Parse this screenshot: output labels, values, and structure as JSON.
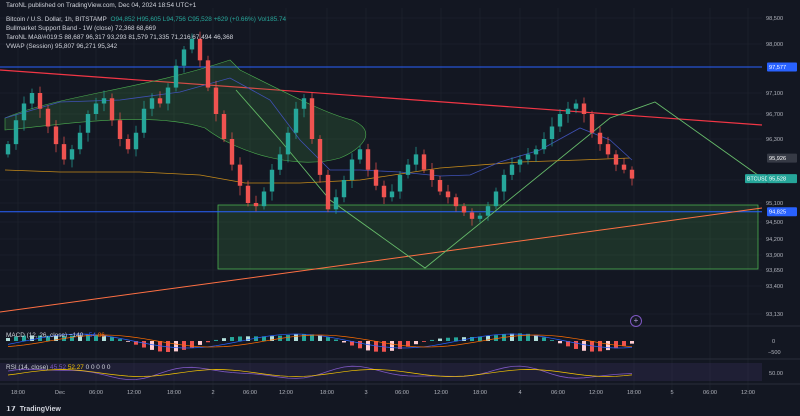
{
  "header": {
    "published": "TaroNL published on TradingView.com, Dec 04, 2024 18:54 UTC+1",
    "symbol": "Bitcoin / U.S. Dollar, 1h, BITSTAMP",
    "ohlc": "O94,852  H95,605  L94,756  C95,528  +629 (+0.66%)  Vol185.74",
    "band": "Bullmarket Support Band - 1W (close)  72,368  68,669",
    "ma": "TaroNL MA8/#019:5  88,687  96,317  93,293  81,579  71,335  71,216  67,494  46,368",
    "vwap": "VWAP (Session)  95,807  96,271  95,342"
  },
  "price_axis": {
    "ticks": [
      {
        "label": "98,500",
        "v": 98500
      },
      {
        "label": "98,000",
        "v": 98000
      },
      {
        "label": "97,100",
        "v": 97100
      },
      {
        "label": "96,700",
        "v": 96700
      },
      {
        "label": "96,300",
        "v": 96300
      },
      {
        "label": "95,500",
        "v": 95500
      },
      {
        "label": "95,100",
        "v": 95100
      },
      {
        "label": "94,500",
        "v": 94500
      },
      {
        "label": "94,200",
        "v": 94200
      },
      {
        "label": "93,900",
        "v": 93900
      },
      {
        "label": "93,650",
        "v": 93650
      },
      {
        "label": "93,400",
        "v": 93400
      },
      {
        "label": "93,130",
        "v": 93130
      }
    ],
    "tags": [
      {
        "label": "97,577",
        "v": 97577,
        "color": "#2962ff"
      },
      {
        "label": "95,926",
        "v": 95926,
        "color": "#363a45"
      },
      {
        "label": "BTCUSD",
        "v": 95528,
        "color": "#26a69a"
      },
      {
        "label": "95,528",
        "v": 95528,
        "color": "#26a69a"
      },
      {
        "label": "94,825",
        "v": 94825,
        "color": "#2962ff"
      }
    ]
  },
  "time_axis": [
    "18:00",
    "Dec",
    "06:00",
    "12:00",
    "18:00",
    "2",
    "06:00",
    "12:00",
    "18:00",
    "3",
    "06:00",
    "12:00",
    "18:00",
    "4",
    "06:00",
    "12:00",
    "18:00",
    "5",
    "06:00",
    "12:00"
  ],
  "macd": {
    "label": "MACD (12, 26, close)",
    "v1": "−140",
    "v2": "−54",
    "v3": "86",
    "axis": [
      "0",
      "−500"
    ]
  },
  "rsi": {
    "label": "RSI (14, close)",
    "v1": "45.52",
    "v2": "52.27",
    "v3": "0 0 0 0 0",
    "axis": [
      "50.00"
    ]
  },
  "brand": {
    "logo": "𝟭𝟳",
    "name": "TradingView"
  },
  "colors": {
    "up": "#26a69a",
    "down": "#ef5350",
    "bg": "#131722",
    "grid": "#1e222d",
    "line_blue": "#2962ff",
    "trend_red": "#f23645",
    "zone": "#4caf50"
  }
}
